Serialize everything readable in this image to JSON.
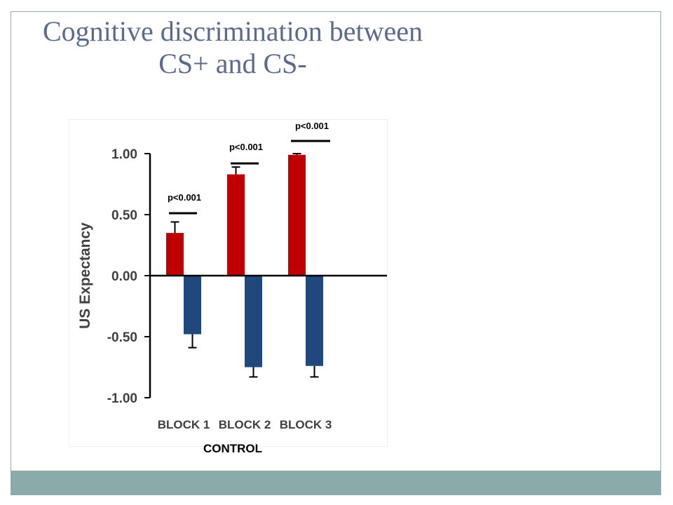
{
  "slide": {
    "title_line1": "Cognitive discrimination between",
    "title_line2": "CS+ and CS-"
  },
  "colors": {
    "cs_plus": "#c00000",
    "cs_minus": "#1f497d",
    "title": "#5a6b8c",
    "band": "#8aabaa",
    "frame": "#8fb0b2"
  },
  "chart_data": {
    "type": "bar",
    "ylabel": "US Expectancy",
    "xlabel": "CONTROL",
    "categories": [
      "BLOCK 1",
      "BLOCK 2",
      "BLOCK 3"
    ],
    "ylim": [
      -1.0,
      1.0
    ],
    "yticks": [
      "1.00",
      "0.50",
      "0.00",
      "-0.50",
      "-1.00"
    ],
    "grid": false,
    "series": [
      {
        "values": [
          0.35,
          0.83,
          0.99
        ],
        "errors": [
          0.09,
          0.06,
          0.01
        ],
        "color": "#c00000"
      },
      {
        "values": [
          -0.48,
          -0.75,
          -0.74
        ],
        "errors": [
          0.11,
          0.08,
          0.09
        ],
        "color": "#1f497d"
      }
    ],
    "annotations": [
      "p<0.001",
      "p<0.001",
      "p<0.001"
    ]
  }
}
